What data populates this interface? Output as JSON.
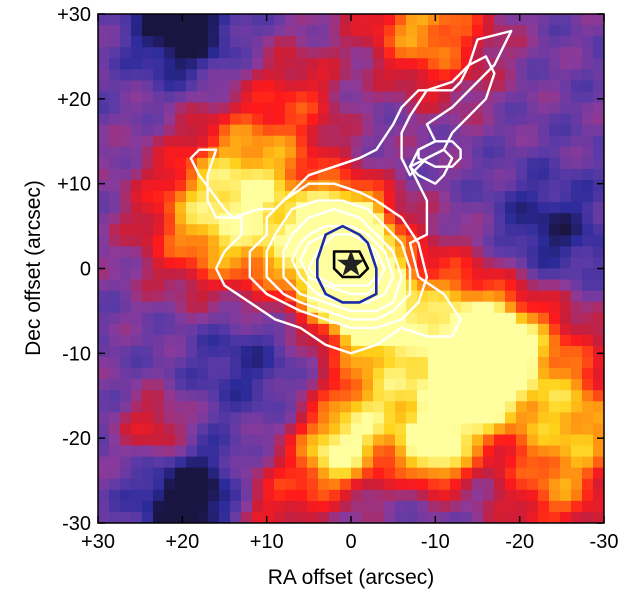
{
  "chart_data": {
    "type": "heatmap",
    "title": "",
    "xlabel": "RA offset (arcsec)",
    "ylabel": "Dec offset (arcsec)",
    "xlim": [
      30,
      -30
    ],
    "ylim": [
      -30,
      30
    ],
    "x_ticks": [
      30,
      20,
      10,
      0,
      -10,
      -20,
      -30
    ],
    "y_ticks": [
      30,
      20,
      10,
      0,
      -10,
      -20,
      -30
    ],
    "x_tick_labels": [
      "+30",
      "+20",
      "+10",
      "0",
      "-10",
      "-20",
      "-30"
    ],
    "y_tick_labels": [
      "+30",
      "+20",
      "+10",
      "0",
      "-10",
      "-20",
      "-30"
    ],
    "grid": false,
    "colormap": [
      "#1a1440",
      "#2a2a9a",
      "#5a3aa6",
      "#8a3a9a",
      "#c81e3a",
      "#ff1a1a",
      "#ff7a10",
      "#ffd21a",
      "#ffffa0"
    ],
    "heat_sources": [
      {
        "x": 0,
        "y": -2,
        "sigma": 3.5,
        "amp": 1.0
      },
      {
        "x": 0,
        "y": 5,
        "sigma": 3.5,
        "amp": 0.65
      },
      {
        "x": -3,
        "y": -6,
        "sigma": 3.0,
        "amp": 0.4
      },
      {
        "x": 6,
        "y": 3,
        "sigma": 6.5,
        "amp": 0.45
      },
      {
        "x": 17,
        "y": 6,
        "sigma": 6.0,
        "amp": 0.5
      },
      {
        "x": 12,
        "y": 14,
        "sigma": 5.0,
        "amp": 0.3
      },
      {
        "x": 5,
        "y": 21,
        "sigma": 4.5,
        "amp": 0.3
      },
      {
        "x": -8,
        "y": 28,
        "sigma": 6.0,
        "amp": 0.55
      },
      {
        "x": -16,
        "y": -10,
        "sigma": 3.0,
        "amp": 0.8
      },
      {
        "x": -14,
        "y": -15,
        "sigma": 4.0,
        "amp": 0.65
      },
      {
        "x": -20,
        "y": -8,
        "sigma": 6.0,
        "amp": 0.45
      },
      {
        "x": -10,
        "y": -22,
        "sigma": 3.0,
        "amp": 0.6
      },
      {
        "x": 2,
        "y": -22,
        "sigma": 3.5,
        "amp": 0.55
      },
      {
        "x": -3,
        "y": -16,
        "sigma": 5.0,
        "amp": 0.5
      },
      {
        "x": -27,
        "y": -18,
        "sigma": 5.0,
        "amp": 0.45
      },
      {
        "x": 23,
        "y": -19,
        "sigma": 3.0,
        "amp": 0.3
      },
      {
        "x": -10,
        "y": -5,
        "sigma": 6.0,
        "amp": 0.4
      },
      {
        "x": -24,
        "y": -27,
        "sigma": 5.0,
        "amp": 0.35
      },
      {
        "x": 9,
        "y": -28,
        "sigma": 4.0,
        "amp": 0.3
      }
    ],
    "cold_sources": [
      {
        "x": 20,
        "y": 28,
        "sigma": 4.0,
        "amp": 0.4
      },
      {
        "x": 19,
        "y": -27,
        "sigma": 4.0,
        "amp": 0.45
      },
      {
        "x": -23,
        "y": 3,
        "sigma": 5.0,
        "amp": 0.3
      },
      {
        "x": -1,
        "y": 23,
        "sigma": 5.0,
        "amp": 0.2
      },
      {
        "x": 12,
        "y": -10,
        "sigma": 5.0,
        "amp": 0.2
      }
    ],
    "white_contours": [
      [
        [
          -15,
          27
        ],
        [
          -19,
          28
        ],
        [
          -17,
          24
        ],
        [
          -14,
          21
        ],
        [
          -12,
          19
        ],
        [
          -9,
          17
        ],
        [
          -10,
          15
        ],
        [
          -8,
          14
        ],
        [
          -7,
          12
        ],
        [
          -8,
          10
        ],
        [
          -9,
          8
        ],
        [
          -9,
          6
        ],
        [
          -9,
          4
        ],
        [
          -7,
          3
        ],
        [
          -8,
          -1
        ],
        [
          -11,
          -3
        ],
        [
          -13,
          -6
        ],
        [
          -12,
          -8
        ],
        [
          -9,
          -8
        ],
        [
          -6,
          -7
        ],
        [
          -3,
          -9
        ],
        [
          0,
          -10
        ],
        [
          3,
          -9
        ],
        [
          6,
          -7
        ],
        [
          9,
          -6
        ],
        [
          12,
          -4
        ],
        [
          15,
          -2
        ],
        [
          16,
          0
        ],
        [
          15,
          2
        ],
        [
          13,
          4
        ],
        [
          13,
          6
        ],
        [
          16,
          6
        ],
        [
          17,
          8
        ],
        [
          17,
          11
        ],
        [
          16,
          14
        ],
        [
          18,
          14
        ],
        [
          19,
          13
        ],
        [
          18,
          11
        ],
        [
          15,
          7
        ],
        [
          14,
          6
        ],
        [
          11,
          7
        ],
        [
          9,
          7
        ],
        [
          7,
          9
        ],
        [
          5,
          11
        ],
        [
          2,
          12
        ],
        [
          -1,
          13
        ],
        [
          -3,
          14
        ],
        [
          -5,
          17
        ],
        [
          -6,
          19
        ],
        [
          -8,
          21
        ],
        [
          -12,
          21
        ],
        [
          -13,
          22
        ],
        [
          -14,
          24
        ],
        [
          -15,
          27
        ]
      ],
      [
        [
          -16,
          25
        ],
        [
          -17,
          23
        ],
        [
          -16,
          20
        ],
        [
          -14,
          18
        ],
        [
          -12,
          16
        ],
        [
          -11,
          14
        ],
        [
          -9,
          13
        ],
        [
          -8,
          12
        ],
        [
          -7,
          11
        ],
        [
          -6,
          13
        ],
        [
          -6,
          16
        ],
        [
          -7,
          18
        ],
        [
          -9,
          21
        ],
        [
          -12,
          22
        ],
        [
          -14,
          24
        ],
        [
          -16,
          25
        ]
      ],
      [
        [
          -10,
          15
        ],
        [
          -12,
          15
        ],
        [
          -13,
          14
        ],
        [
          -13,
          13
        ],
        [
          -12,
          12
        ],
        [
          -10,
          12
        ],
        [
          -8,
          13
        ],
        [
          -8,
          14
        ],
        [
          -10,
          15
        ]
      ],
      [
        [
          -9,
          13
        ],
        [
          -11,
          14
        ],
        [
          -12,
          13
        ],
        [
          -11,
          11
        ],
        [
          -10,
          10
        ],
        [
          -8,
          11
        ],
        [
          -7,
          12
        ],
        [
          -9,
          13
        ]
      ],
      [
        [
          10,
          4
        ],
        [
          12,
          2
        ],
        [
          12,
          -1
        ],
        [
          10,
          -3
        ],
        [
          8,
          -4
        ],
        [
          6,
          -5
        ],
        [
          3,
          -6
        ],
        [
          0,
          -7
        ],
        [
          -3,
          -7
        ],
        [
          -6,
          -6
        ],
        [
          -8,
          -4
        ],
        [
          -9,
          -1
        ],
        [
          -8,
          3
        ],
        [
          -6,
          6
        ],
        [
          -3,
          8
        ],
        [
          -1,
          9
        ],
        [
          2,
          10
        ],
        [
          5,
          10
        ],
        [
          8,
          8
        ],
        [
          10,
          6
        ],
        [
          10,
          4
        ]
      ],
      [
        [
          9,
          4
        ],
        [
          10,
          2
        ],
        [
          10,
          -1
        ],
        [
          8,
          -3
        ],
        [
          6,
          -4
        ],
        [
          3,
          -5
        ],
        [
          0,
          -6
        ],
        [
          -3,
          -6
        ],
        [
          -5,
          -5
        ],
        [
          -7,
          -3
        ],
        [
          -7,
          0
        ],
        [
          -6,
          3
        ],
        [
          -4,
          5
        ],
        [
          -2,
          7
        ],
        [
          1,
          8
        ],
        [
          4,
          8
        ],
        [
          7,
          7
        ],
        [
          9,
          4
        ]
      ],
      [
        [
          7,
          4
        ],
        [
          8,
          2
        ],
        [
          8,
          -1
        ],
        [
          6,
          -3
        ],
        [
          3,
          -4
        ],
        [
          0,
          -5
        ],
        [
          -3,
          -5
        ],
        [
          -5,
          -4
        ],
        [
          -6,
          -1
        ],
        [
          -5,
          2
        ],
        [
          -3,
          4
        ],
        [
          -1,
          6
        ],
        [
          2,
          7
        ],
        [
          5,
          6
        ],
        [
          7,
          4
        ]
      ],
      [
        [
          6,
          3
        ],
        [
          7,
          1
        ],
        [
          6,
          -1
        ],
        [
          4,
          -3
        ],
        [
          1,
          -4
        ],
        [
          -2,
          -4
        ],
        [
          -4,
          -3
        ],
        [
          -5,
          -1
        ],
        [
          -4,
          2
        ],
        [
          -2,
          4
        ],
        [
          0,
          5
        ],
        [
          3,
          5
        ],
        [
          5,
          4
        ],
        [
          6,
          3
        ]
      ],
      [
        [
          5,
          3
        ],
        [
          6,
          1
        ],
        [
          5,
          -1
        ],
        [
          3,
          -2
        ],
        [
          0,
          -3
        ],
        [
          -2,
          -3
        ],
        [
          -3,
          -2
        ],
        [
          -4,
          0
        ],
        [
          -3,
          2
        ],
        [
          -1,
          4
        ],
        [
          1,
          5
        ],
        [
          3,
          4
        ],
        [
          5,
          3
        ]
      ],
      [
        [
          4,
          2
        ],
        [
          5,
          0
        ],
        [
          4,
          -1
        ],
        [
          2,
          -2
        ],
        [
          0,
          -2
        ],
        [
          -2,
          -2
        ],
        [
          -3,
          -1
        ],
        [
          -3,
          1
        ],
        [
          -2,
          3
        ],
        [
          0,
          4
        ],
        [
          2,
          4
        ],
        [
          4,
          2
        ]
      ]
    ],
    "blue_contour": [
      [
        4,
        1
      ],
      [
        4,
        -1
      ],
      [
        3,
        -3
      ],
      [
        1,
        -4
      ],
      [
        -1,
        -4
      ],
      [
        -3,
        -3
      ],
      [
        -3,
        0
      ],
      [
        -2,
        3
      ],
      [
        -1,
        4
      ],
      [
        1,
        5
      ],
      [
        3,
        4
      ],
      [
        4,
        1
      ]
    ],
    "black_contour": [
      [
        2,
        2
      ],
      [
        2,
        0
      ],
      [
        1,
        -1
      ],
      [
        -1,
        -1
      ],
      [
        -2,
        0
      ],
      [
        -1,
        2
      ],
      [
        0,
        2
      ],
      [
        2,
        2
      ]
    ],
    "star": {
      "x": 0,
      "y": 0.5
    }
  }
}
